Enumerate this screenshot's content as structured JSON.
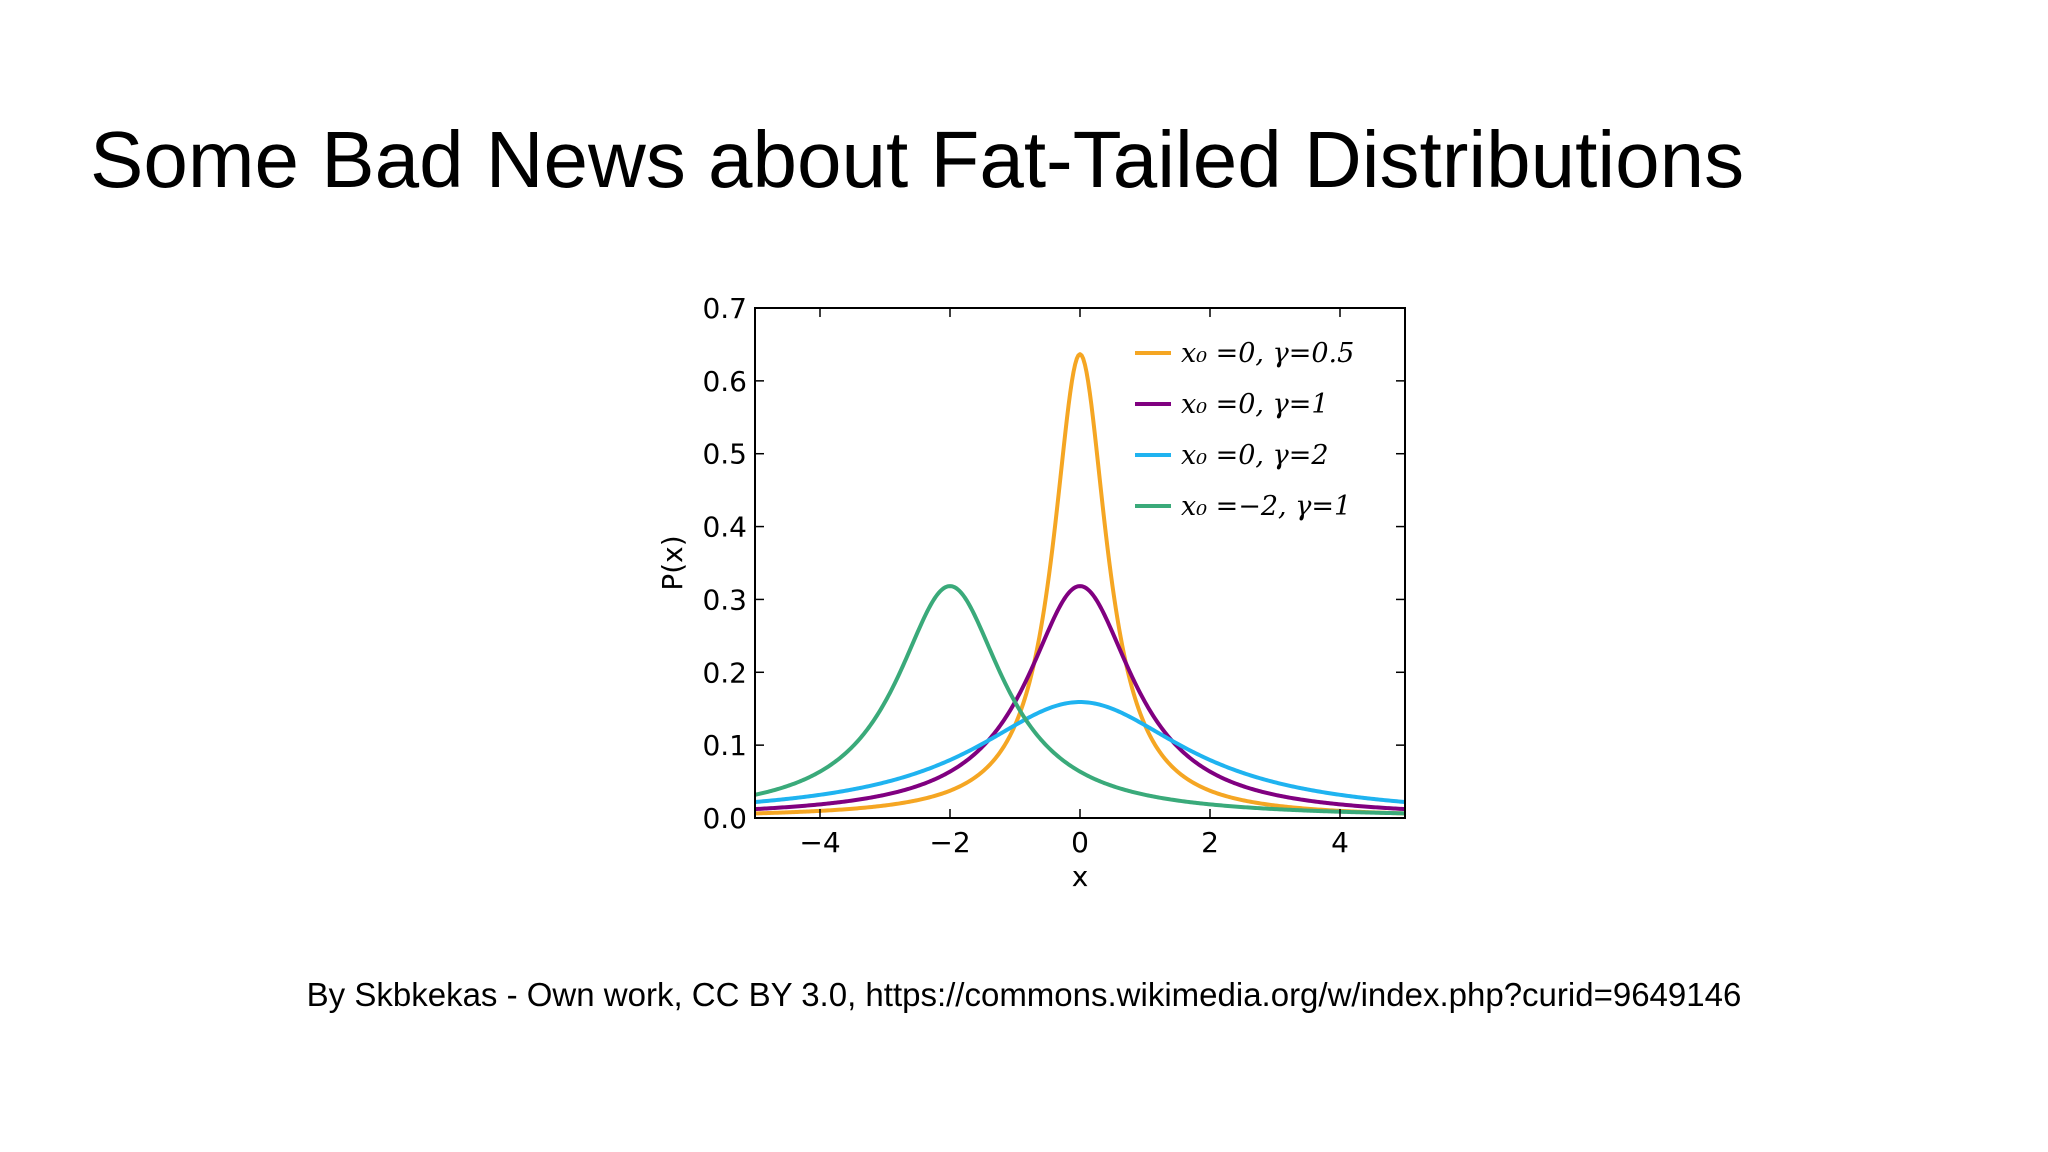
{
  "slide": {
    "title": "Some Bad News about Fat-Tailed Distributions",
    "caption": "By Skbkekas - Own work, CC BY 3.0, https://commons.wikimedia.org/w/index.php?curid=9649146"
  },
  "chart_data": {
    "type": "line",
    "title": "",
    "xlabel": "x",
    "ylabel": "P(x)",
    "xlim": [
      -5,
      5
    ],
    "ylim": [
      0,
      0.7
    ],
    "xticks": [
      -4,
      -2,
      0,
      2,
      4
    ],
    "xtick_labels": [
      "−4",
      "−2",
      "0",
      "2",
      "4"
    ],
    "yticks": [
      0.0,
      0.1,
      0.2,
      0.3,
      0.4,
      0.5,
      0.6,
      0.7
    ],
    "ytick_labels": [
      "0.0",
      "0.1",
      "0.2",
      "0.3",
      "0.4",
      "0.5",
      "0.6",
      "0.7"
    ],
    "grid": false,
    "legend_position": "top-right",
    "series": [
      {
        "name": "x₀ =0, γ=0.5",
        "color": "#f5a623",
        "x0": 0,
        "gamma": 0.5,
        "x": [
          -5,
          -4,
          -3,
          -2,
          -1,
          -0.5,
          0,
          0.5,
          1,
          2,
          3,
          4,
          5
        ],
        "y": [
          0.0063,
          0.0098,
          0.0174,
          0.0374,
          0.1273,
          0.3183,
          0.6366,
          0.3183,
          0.1273,
          0.0374,
          0.0174,
          0.0098,
          0.0063
        ]
      },
      {
        "name": "x₀ =0, γ=1",
        "color": "#800080",
        "x0": 0,
        "gamma": 1,
        "x": [
          -5,
          -4,
          -3,
          -2,
          -1,
          -0.5,
          0,
          0.5,
          1,
          2,
          3,
          4,
          5
        ],
        "y": [
          0.0122,
          0.0187,
          0.0318,
          0.0637,
          0.1592,
          0.2546,
          0.3183,
          0.2546,
          0.1592,
          0.0637,
          0.0318,
          0.0187,
          0.0122
        ]
      },
      {
        "name": "x₀ =0, γ=2",
        "color": "#1fb3f0",
        "x0": 0,
        "gamma": 2,
        "x": [
          -5,
          -4,
          -3,
          -2,
          -1,
          -0.5,
          0,
          0.5,
          1,
          2,
          3,
          4,
          5
        ],
        "y": [
          0.022,
          0.0318,
          0.049,
          0.0796,
          0.1273,
          0.1498,
          0.1592,
          0.1498,
          0.1273,
          0.0796,
          0.049,
          0.0318,
          0.022
        ]
      },
      {
        "name": "x₀ =−2, γ=1",
        "color": "#3aaa7a",
        "x0": -2,
        "gamma": 1,
        "x": [
          -5,
          -4,
          -3,
          -2.5,
          -2,
          -1.5,
          -1,
          0,
          1,
          2,
          3,
          4,
          5
        ],
        "y": [
          0.0318,
          0.0637,
          0.1592,
          0.2546,
          0.3183,
          0.2546,
          0.1592,
          0.0637,
          0.0318,
          0.0187,
          0.0122,
          0.0086,
          0.0065
        ]
      }
    ]
  }
}
